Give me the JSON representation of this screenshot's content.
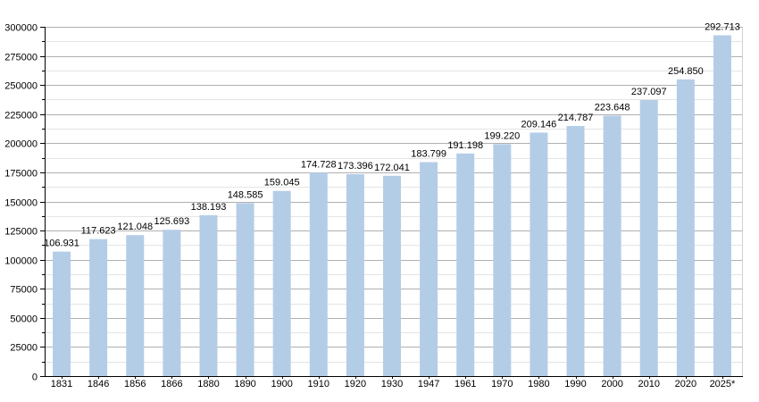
{
  "chart_data": {
    "type": "bar",
    "categories": [
      "1831",
      "1846",
      "1856",
      "1866",
      "1880",
      "1890",
      "1900",
      "1910",
      "1920",
      "1930",
      "1947",
      "1961",
      "1970",
      "1980",
      "1990",
      "2000",
      "2010",
      "2020",
      "2025*"
    ],
    "values": [
      106931,
      117623,
      121048,
      125693,
      138193,
      148585,
      159045,
      174728,
      173396,
      172041,
      183799,
      191198,
      199220,
      209146,
      214787,
      223648,
      237097,
      254850,
      292713
    ],
    "data_labels": [
      "106.931",
      "117.623",
      "121.048",
      "125.693",
      "138.193",
      "148.585",
      "159.045",
      "174.728",
      "173.396",
      "172.041",
      "183.799",
      "191.198",
      "199.220",
      "209.146",
      "214.787",
      "223.648",
      "237.097",
      "254.850",
      "292.713"
    ],
    "yticks": [
      "0",
      "25000",
      "50000",
      "75000",
      "100000",
      "125000",
      "150000",
      "175000",
      "200000",
      "225000",
      "250000",
      "275000",
      "300000"
    ],
    "ylim": [
      0,
      300000
    ],
    "title": "",
    "xlabel": "",
    "ylabel": "",
    "grid": true,
    "colors": {
      "bar": "#b4cde7",
      "grid_major": "#b0b0b0",
      "grid_minor": "#e4e4e4",
      "axis": "#000000"
    }
  }
}
